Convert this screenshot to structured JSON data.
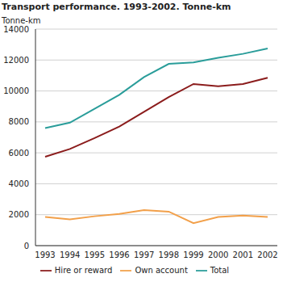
{
  "chart_data": {
    "type": "line",
    "title": "Transport performance. 1993-2002. Tonne-km",
    "y_label": "Tonne-km",
    "categories": [
      "1993",
      "1994",
      "1995",
      "1996",
      "1997",
      "1998",
      "1999",
      "2000",
      "2001",
      "2002"
    ],
    "series": [
      {
        "name": "Total",
        "color": "#2a9d9a",
        "values": [
          7600,
          7950,
          8850,
          9750,
          10900,
          11750,
          11850,
          12150,
          12400,
          12750
        ]
      },
      {
        "name": "Hire or reward",
        "color": "#8b1c1c",
        "values": [
          5750,
          6250,
          6950,
          7700,
          8650,
          9600,
          10450,
          10300,
          10450,
          10850
        ]
      },
      {
        "name": "Own account",
        "color": "#f2a04a",
        "values": [
          1850,
          1700,
          1900,
          2050,
          2300,
          2200,
          1450,
          1850,
          1950,
          1850
        ]
      }
    ],
    "ylim": [
      0,
      14000
    ],
    "yticks": [
      0,
      2000,
      4000,
      6000,
      8000,
      10000,
      12000,
      14000
    ],
    "grid": true,
    "legend": "bottom"
  }
}
